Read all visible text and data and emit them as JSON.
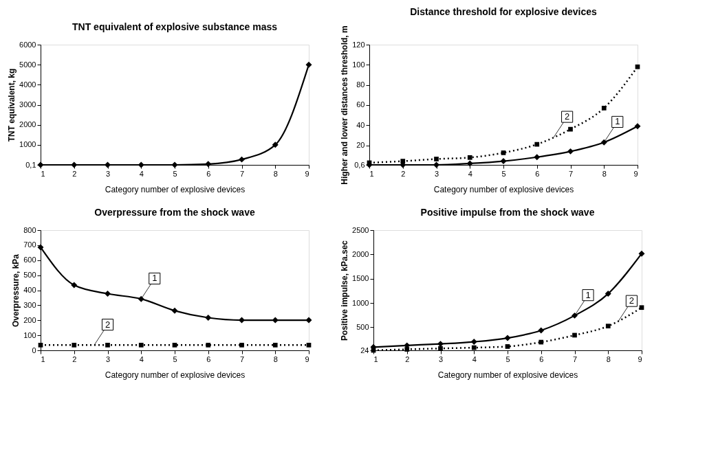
{
  "chart_data": [
    {
      "type": "line",
      "title": "TNT equivalent of explosive substance mass",
      "xlabel": "Category number of explosive devices",
      "ylabel": "TNT equivalent, kg",
      "x": [
        1,
        2,
        3,
        4,
        5,
        6,
        7,
        8,
        9
      ],
      "xlim": [
        1,
        9
      ],
      "xticks": [
        1,
        2,
        3,
        4,
        5,
        6,
        7,
        8,
        9
      ],
      "ylim": [
        0.1,
        6000
      ],
      "yticks": [
        {
          "value": 0.1,
          "label": "0,1"
        },
        1000,
        2000,
        3000,
        4000,
        5000,
        6000
      ],
      "series": [
        {
          "color": "#000000",
          "marker": "diamond",
          "line_style": "solid",
          "values": [
            0.1,
            0.1,
            0.1,
            0.1,
            0.1,
            40,
            270,
            1000,
            5000
          ]
        }
      ],
      "grid": false,
      "legend": false
    },
    {
      "type": "line",
      "title": "Distance threshold for explosive devices",
      "xlabel": "Category number of explosive devices",
      "ylabel": "Higher and lower distances threshold, m",
      "x": [
        1,
        2,
        3,
        4,
        5,
        6,
        7,
        8,
        9
      ],
      "xlim": [
        1,
        9
      ],
      "xticks": [
        1,
        2,
        3,
        4,
        5,
        6,
        7,
        8,
        9
      ],
      "ylim": [
        0.6,
        120
      ],
      "yticks": [
        {
          "value": 0.6,
          "label": "0,6"
        },
        20,
        40,
        60,
        80,
        100,
        120
      ],
      "series": [
        {
          "color": "#000000",
          "marker": "diamond",
          "line_style": "solid",
          "values": [
            0.6,
            0.6,
            0.6,
            2,
            4.3,
            8.3,
            14,
            23,
            39
          ]
        },
        {
          "color": "#000000",
          "marker": "square",
          "line_style": "dotted",
          "values": [
            2.7,
            4.3,
            6.4,
            7.9,
            12.6,
            21,
            36,
            57,
            98
          ]
        }
      ],
      "annotations": [
        {
          "text": "1",
          "x": 8,
          "y": 23
        },
        {
          "text": "2",
          "x": 6.5,
          "y": 28
        }
      ],
      "grid": false,
      "legend": false
    },
    {
      "type": "line",
      "title": "Overpressure from the shock wave",
      "xlabel": "Category number of explosive devices",
      "ylabel": "Overpressure, kPa",
      "x": [
        1,
        2,
        3,
        4,
        5,
        6,
        7,
        8,
        9
      ],
      "xlim": [
        1,
        9
      ],
      "xticks": [
        1,
        2,
        3,
        4,
        5,
        6,
        7,
        8,
        9
      ],
      "ylim": [
        0,
        800
      ],
      "yticks": [
        0,
        100,
        200,
        300,
        400,
        500,
        600,
        700,
        800
      ],
      "series": [
        {
          "color": "#000000",
          "marker": "diamond",
          "line_style": "solid",
          "values": [
            686,
            434,
            377,
            342,
            264,
            217,
            201,
            201,
            201
          ]
        },
        {
          "color": "#000000",
          "marker": "square",
          "line_style": "dotted",
          "values": [
            35,
            35,
            35,
            35,
            35,
            35,
            35,
            35,
            35
          ]
        }
      ],
      "annotations": [
        {
          "text": "1",
          "x": 4,
          "y": 342
        },
        {
          "text": "2",
          "x": 2.6,
          "y": 35
        }
      ],
      "grid": false,
      "legend": false
    },
    {
      "type": "line",
      "title": "Positive impulse from the shock wave",
      "xlabel": "Category number of explosive devices",
      "ylabel": "Positive impulse, kPa.sec",
      "x": [
        1,
        2,
        3,
        4,
        5,
        6,
        7,
        8,
        9
      ],
      "xlim": [
        1,
        9
      ],
      "xticks": [
        1,
        2,
        3,
        4,
        5,
        6,
        7,
        8,
        9
      ],
      "ylim": [
        24,
        2500
      ],
      "yticks": [
        24,
        500,
        1000,
        1500,
        2000,
        2500
      ],
      "series": [
        {
          "color": "#000000",
          "marker": "diamond",
          "line_style": "solid",
          "values": [
            90,
            125,
            157,
            200,
            278,
            435,
            740,
            1190,
            2016
          ]
        },
        {
          "color": "#000000",
          "marker": "square",
          "line_style": "dotted",
          "values": [
            24,
            45,
            63,
            80,
            103,
            193,
            336,
            524,
            905
          ]
        }
      ],
      "annotations": [
        {
          "text": "1",
          "x": 7,
          "y": 740
        },
        {
          "text": "2",
          "x": 8.3,
          "y": 620
        }
      ],
      "grid": false,
      "legend": false
    }
  ]
}
